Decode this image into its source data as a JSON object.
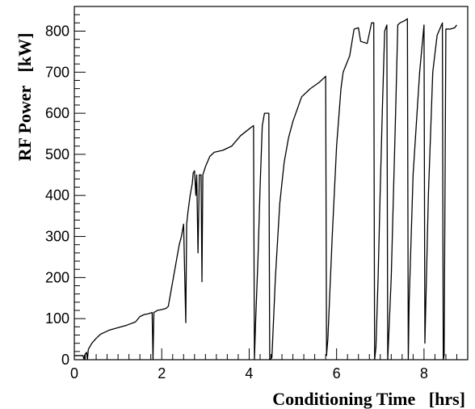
{
  "chart_data": {
    "type": "line",
    "title": "",
    "xlabel": "Conditioning Time   [hrs]",
    "ylabel": "RF Power   [kW]",
    "xlim": [
      0,
      9
    ],
    "ylim": [
      0,
      860
    ],
    "x_ticks": [
      0,
      2,
      4,
      6,
      8
    ],
    "y_ticks": [
      0,
      100,
      200,
      300,
      400,
      500,
      600,
      700,
      800
    ],
    "grid": false,
    "legend": "none",
    "colors": {
      "line": "#000000",
      "axes": "#000000",
      "background": "#ffffff"
    },
    "series": [
      {
        "points": [
          [
            0.0,
            10
          ],
          [
            0.2,
            10
          ],
          [
            0.22,
            0
          ],
          [
            0.24,
            12
          ],
          [
            0.28,
            18
          ],
          [
            0.3,
            0
          ],
          [
            0.32,
            25
          ],
          [
            0.4,
            40
          ],
          [
            0.5,
            52
          ],
          [
            0.6,
            62
          ],
          [
            0.8,
            72
          ],
          [
            1.0,
            78
          ],
          [
            1.2,
            84
          ],
          [
            1.4,
            92
          ],
          [
            1.5,
            105
          ],
          [
            1.6,
            110
          ],
          [
            1.7,
            112
          ],
          [
            1.78,
            115
          ],
          [
            1.8,
            0
          ],
          [
            1.82,
            115
          ],
          [
            1.9,
            120
          ],
          [
            2.0,
            122
          ],
          [
            2.1,
            125
          ],
          [
            2.15,
            130
          ],
          [
            2.2,
            160
          ],
          [
            2.3,
            220
          ],
          [
            2.4,
            280
          ],
          [
            2.45,
            300
          ],
          [
            2.5,
            330
          ],
          [
            2.55,
            90
          ],
          [
            2.57,
            330
          ],
          [
            2.6,
            360
          ],
          [
            2.65,
            400
          ],
          [
            2.7,
            430
          ],
          [
            2.72,
            455
          ],
          [
            2.75,
            460
          ],
          [
            2.78,
            400
          ],
          [
            2.8,
            450
          ],
          [
            2.83,
            260
          ],
          [
            2.86,
            450
          ],
          [
            2.9,
            450
          ],
          [
            2.92,
            190
          ],
          [
            2.94,
            450
          ],
          [
            3.0,
            470
          ],
          [
            3.1,
            495
          ],
          [
            3.2,
            505
          ],
          [
            3.4,
            510
          ],
          [
            3.6,
            520
          ],
          [
            3.8,
            545
          ],
          [
            4.0,
            562
          ],
          [
            4.1,
            570
          ],
          [
            4.12,
            0
          ],
          [
            4.15,
            100
          ],
          [
            4.2,
            240
          ],
          [
            4.25,
            420
          ],
          [
            4.3,
            570
          ],
          [
            4.35,
            600
          ],
          [
            4.45,
            600
          ],
          [
            4.47,
            0
          ],
          [
            4.52,
            5
          ],
          [
            4.6,
            200
          ],
          [
            4.7,
            380
          ],
          [
            4.8,
            480
          ],
          [
            4.9,
            540
          ],
          [
            5.0,
            580
          ],
          [
            5.1,
            610
          ],
          [
            5.2,
            640
          ],
          [
            5.4,
            660
          ],
          [
            5.6,
            675
          ],
          [
            5.7,
            685
          ],
          [
            5.75,
            690
          ],
          [
            5.77,
            10
          ],
          [
            5.8,
            50
          ],
          [
            5.9,
            300
          ],
          [
            6.0,
            520
          ],
          [
            6.1,
            660
          ],
          [
            6.15,
            700
          ],
          [
            6.3,
            740
          ],
          [
            6.4,
            805
          ],
          [
            6.5,
            808
          ],
          [
            6.55,
            775
          ],
          [
            6.7,
            770
          ],
          [
            6.8,
            820
          ],
          [
            6.85,
            820
          ],
          [
            6.87,
            0
          ],
          [
            6.9,
            30
          ],
          [
            6.95,
            200
          ],
          [
            7.0,
            420
          ],
          [
            7.05,
            620
          ],
          [
            7.1,
            800
          ],
          [
            7.15,
            815
          ],
          [
            7.17,
            0
          ],
          [
            7.25,
            200
          ],
          [
            7.35,
            600
          ],
          [
            7.4,
            815
          ],
          [
            7.45,
            820
          ],
          [
            7.55,
            825
          ],
          [
            7.62,
            830
          ],
          [
            7.64,
            0
          ],
          [
            7.66,
            140
          ],
          [
            7.75,
            450
          ],
          [
            7.9,
            700
          ],
          [
            8.0,
            815
          ],
          [
            8.02,
            40
          ],
          [
            8.1,
            400
          ],
          [
            8.2,
            700
          ],
          [
            8.3,
            790
          ],
          [
            8.42,
            820
          ],
          [
            8.44,
            0
          ],
          [
            8.46,
            10
          ],
          [
            8.5,
            805
          ],
          [
            8.6,
            805
          ],
          [
            8.7,
            808
          ],
          [
            8.75,
            815
          ]
        ]
      }
    ]
  }
}
